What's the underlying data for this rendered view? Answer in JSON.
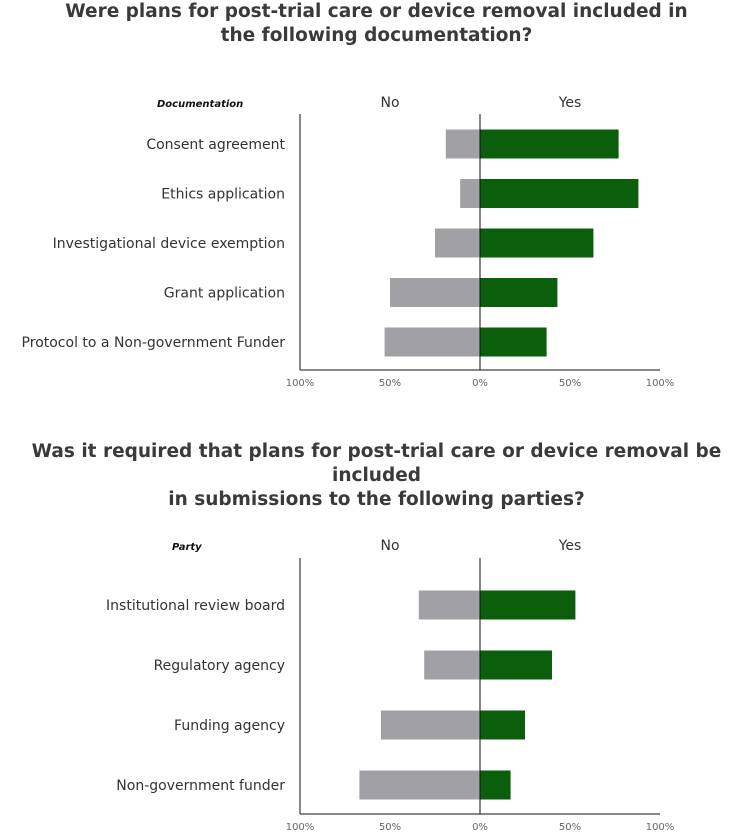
{
  "chart_data": [
    {
      "type": "bar",
      "stacking": "diverging",
      "title_lines": [
        "Were plans for post-trial care or device removal included in",
        "the following documentation?"
      ],
      "category_axis_label": "Documentation",
      "side_labels": {
        "left": "No",
        "right": "Yes"
      },
      "categories": [
        "Consent agreement",
        "Ethics application",
        "Investigational device exemption",
        "Grant application",
        "Protocol to a Non-government Funder"
      ],
      "series": [
        {
          "name": "No",
          "values": [
            19,
            11,
            25,
            50,
            53
          ],
          "color": "#a0a0a5"
        },
        {
          "name": "Yes",
          "values": [
            77,
            88,
            63,
            43,
            37
          ],
          "color": "#0b5e0b"
        }
      ],
      "x_ticks": [
        "100%",
        "50%",
        "0%",
        "50%",
        "100%"
      ],
      "xlim": [
        -100,
        100
      ],
      "grid": false
    },
    {
      "type": "bar",
      "stacking": "diverging",
      "title_lines": [
        "Was it required that plans for post-trial care or device removal be included",
        "in submissions to the following parties?"
      ],
      "category_axis_label": "Party",
      "side_labels": {
        "left": "No",
        "right": "Yes"
      },
      "categories": [
        "Institutional review board",
        "Regulatory agency",
        "Funding agency",
        "Non-government funder"
      ],
      "series": [
        {
          "name": "No",
          "values": [
            34,
            31,
            55,
            67
          ],
          "color": "#a0a0a5"
        },
        {
          "name": "Yes",
          "values": [
            53,
            40,
            25,
            17
          ],
          "color": "#0b5e0b"
        }
      ],
      "x_ticks": [
        "100%",
        "50%",
        "0%",
        "50%",
        "100%"
      ],
      "xlim": [
        -100,
        100
      ],
      "grid": false
    }
  ]
}
